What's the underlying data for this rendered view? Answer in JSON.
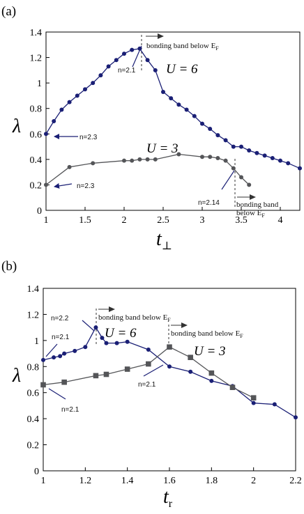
{
  "chart_data": [
    {
      "type": "line",
      "panel_label": "(a)",
      "xlabel": "t",
      "xlabel_sub": "⊥",
      "ylabel": "λ",
      "xlim": [
        1,
        4.25
      ],
      "ylim": [
        0,
        1.4
      ],
      "x_ticks": [
        "1",
        "1.5",
        "2",
        "2.5",
        "3",
        "3.5",
        "4"
      ],
      "y_ticks": [
        "0",
        "0.2",
        "0.4",
        "0.6",
        "0.8",
        "1",
        "1.2",
        "1.4"
      ],
      "series": [
        {
          "name": "U = 6",
          "color": "#1a1f75",
          "marker": "circle",
          "x": [
            1.0,
            1.1,
            1.2,
            1.3,
            1.4,
            1.5,
            1.6,
            1.7,
            1.8,
            1.9,
            2.0,
            2.1,
            2.2,
            2.3,
            2.4,
            2.5,
            2.6,
            2.7,
            2.8,
            2.9,
            3.0,
            3.1,
            3.2,
            3.3,
            3.4,
            3.5,
            3.6,
            3.7,
            3.8,
            3.9,
            4.0,
            4.1,
            4.25
          ],
          "y": [
            0.6,
            0.7,
            0.79,
            0.85,
            0.9,
            0.95,
            1.0,
            1.06,
            1.13,
            1.18,
            1.23,
            1.26,
            1.27,
            1.18,
            1.1,
            0.93,
            0.88,
            0.83,
            0.79,
            0.74,
            0.68,
            0.64,
            0.59,
            0.55,
            0.5,
            0.5,
            0.47,
            0.45,
            0.43,
            0.41,
            0.39,
            0.37,
            0.33
          ]
        },
        {
          "name": "U = 3",
          "color": "#545558",
          "marker": "circle",
          "x": [
            1.0,
            1.3,
            1.6,
            2.0,
            2.1,
            2.2,
            2.3,
            2.4,
            2.7,
            3.0,
            3.1,
            3.2,
            3.3,
            3.4,
            3.5,
            3.6
          ],
          "y": [
            0.2,
            0.34,
            0.37,
            0.39,
            0.39,
            0.4,
            0.4,
            0.4,
            0.44,
            0.42,
            0.42,
            0.41,
            0.39,
            0.33,
            0.26,
            0.2
          ]
        }
      ],
      "series_labels": [
        "U = 6",
        "U = 3"
      ],
      "annotations": [
        "n=2.1",
        "n=2.3",
        "n=2.3",
        "n=2.14"
      ],
      "band_note_line1": "bonding band below E",
      "band_note_sub": "F",
      "band_note_wrapped_1": "bonding band",
      "band_note_wrapped_2": "below E"
    },
    {
      "type": "line",
      "panel_label": "(b)",
      "xlabel": "t",
      "xlabel_sub": "r",
      "ylabel": "λ",
      "xlim": [
        1,
        2.2
      ],
      "ylim": [
        0,
        1.4
      ],
      "x_ticks": [
        "1",
        "1.2",
        "1.4",
        "1.6",
        "1.8",
        "2",
        "2.2"
      ],
      "y_ticks": [
        "0",
        "0.2",
        "0.4",
        "0.6",
        "0.8",
        "1",
        "1.2",
        "1.4"
      ],
      "series": [
        {
          "name": "U = 6",
          "color": "#1a1f75",
          "marker": "circle",
          "x": [
            1.0,
            1.05,
            1.08,
            1.1,
            1.15,
            1.2,
            1.25,
            1.28,
            1.3,
            1.35,
            1.4,
            1.5,
            1.6,
            1.7,
            1.8,
            1.9,
            2.0,
            2.1,
            2.2
          ],
          "y": [
            0.85,
            0.87,
            0.88,
            0.9,
            0.92,
            0.95,
            1.1,
            1.02,
            0.98,
            0.98,
            0.99,
            0.93,
            0.8,
            0.76,
            0.69,
            0.65,
            0.52,
            0.51,
            0.41
          ]
        },
        {
          "name": "U = 3",
          "color": "#545558",
          "marker": "square",
          "x": [
            1.0,
            1.1,
            1.25,
            1.3,
            1.4,
            1.5,
            1.6,
            1.7,
            1.8,
            1.9,
            2.0
          ],
          "y": [
            0.66,
            0.68,
            0.73,
            0.74,
            0.78,
            0.82,
            0.95,
            0.87,
            0.75,
            0.64,
            0.56
          ]
        }
      ],
      "series_labels": [
        "U = 6",
        "U = 3"
      ],
      "annotations": [
        "n=2.2",
        "n=2.1",
        "n=2.1",
        "n=2.1"
      ],
      "band_note_line1": "bonding band below E",
      "band_note_sub": "F"
    }
  ]
}
